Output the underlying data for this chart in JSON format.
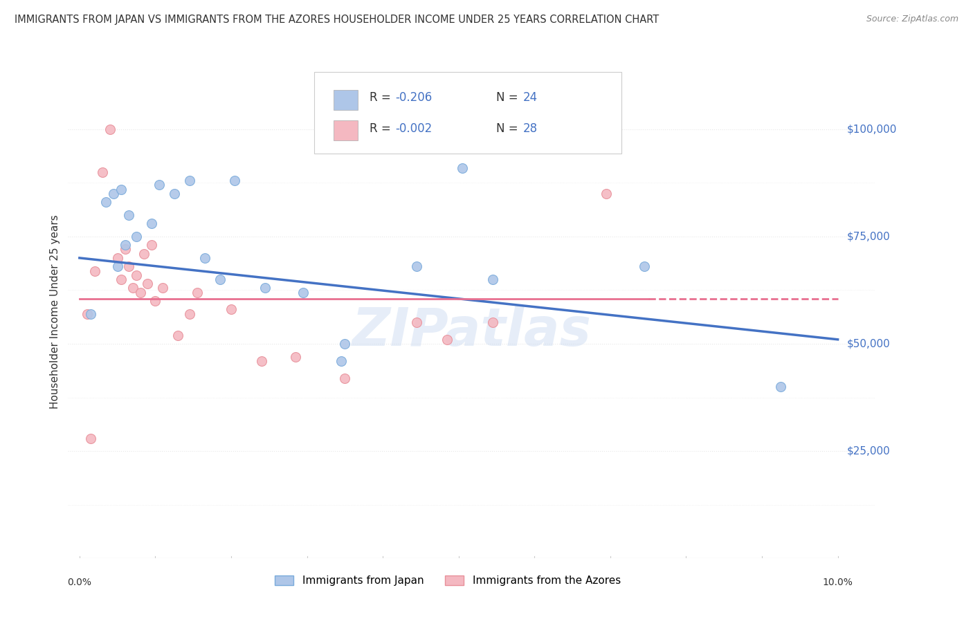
{
  "title": "IMMIGRANTS FROM JAPAN VS IMMIGRANTS FROM THE AZORES HOUSEHOLDER INCOME UNDER 25 YEARS CORRELATION CHART",
  "source": "Source: ZipAtlas.com",
  "ylabel": "Householder Income Under 25 years",
  "xlim": [
    -0.15,
    10.5
  ],
  "xplot_max": 10.0,
  "ylim": [
    0,
    115000
  ],
  "yticks": [
    25000,
    50000,
    75000,
    100000
  ],
  "ytick_labels": [
    "$25,000",
    "$50,000",
    "$75,000",
    "$100,000"
  ],
  "background_color": "#ffffff",
  "grid_color": "#e8e8e8",
  "watermark": "ZIPatlas",
  "legend_R_japan": "-0.206",
  "legend_N_japan": "24",
  "legend_R_azores": "-0.002",
  "legend_N_azores": "28",
  "legend_japan_label": "Immigrants from Japan",
  "legend_azores_label": "Immigrants from the Azores",
  "japan_color": "#aec6e8",
  "japan_edge": "#7aabdb",
  "azores_color": "#f4b8c1",
  "azores_edge": "#e8909a",
  "japan_x": [
    0.15,
    0.35,
    0.45,
    0.55,
    0.65,
    0.75,
    0.95,
    1.05,
    1.25,
    1.45,
    1.65,
    1.85,
    2.05,
    2.45,
    2.95,
    3.45,
    4.45,
    5.05,
    5.45,
    7.45,
    9.25,
    0.6,
    0.5,
    3.5
  ],
  "japan_y": [
    57000,
    83000,
    85000,
    86000,
    80000,
    75000,
    78000,
    87000,
    85000,
    88000,
    70000,
    65000,
    88000,
    63000,
    62000,
    46000,
    68000,
    91000,
    65000,
    68000,
    40000,
    73000,
    68000,
    50000
  ],
  "azores_x": [
    0.1,
    0.2,
    0.3,
    0.4,
    0.5,
    0.55,
    0.6,
    0.65,
    0.7,
    0.75,
    0.8,
    0.85,
    0.9,
    0.95,
    1.0,
    1.1,
    1.3,
    1.45,
    2.0,
    2.4,
    2.85,
    3.5,
    4.45,
    4.85,
    5.45,
    6.95,
    1.55,
    0.15
  ],
  "azores_y": [
    57000,
    67000,
    90000,
    100000,
    70000,
    65000,
    72000,
    68000,
    63000,
    66000,
    62000,
    71000,
    64000,
    73000,
    60000,
    63000,
    52000,
    57000,
    58000,
    46000,
    47000,
    42000,
    55000,
    51000,
    55000,
    85000,
    62000,
    28000
  ],
  "japan_trend_x0": 0.0,
  "japan_trend_y0": 70000,
  "japan_trend_x1": 10.0,
  "japan_trend_y1": 51000,
  "japan_trend_color": "#4472c4",
  "azores_trend_y": 60500,
  "azores_solid_x1": 7.5,
  "azores_trend_color": "#e87090",
  "dot_size": 100,
  "blue_text_color": "#4472c4",
  "dark_text_color": "#333333",
  "light_text_color": "#888888"
}
